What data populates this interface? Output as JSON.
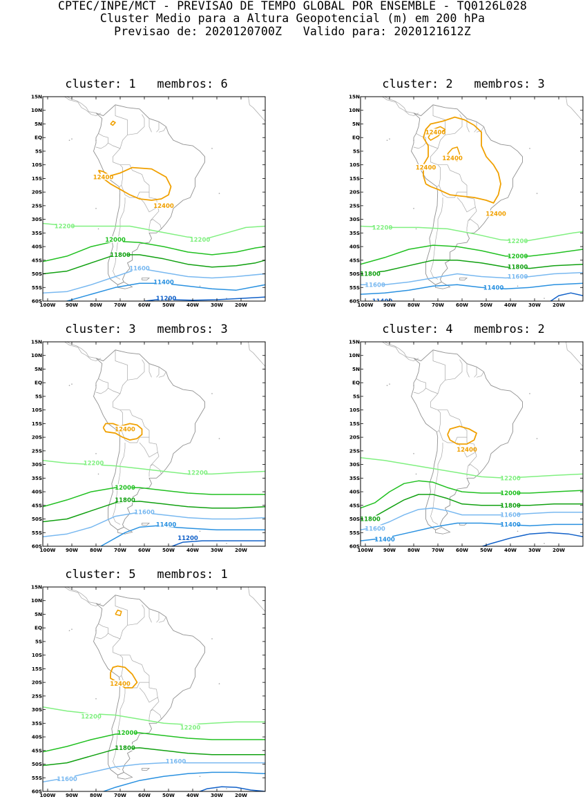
{
  "header": {
    "line1": "CPTEC/INPE/MCT - PREVISAO DE TEMPO GLOBAL POR ENSEMBLE - TQ0126L028",
    "line2": "Cluster Medio para a Altura Geopotencial (m) em 200 hPa",
    "line3": "Previsao de: 2020120700Z   Valido para: 2020121612Z"
  },
  "axes": {
    "lat_labels": [
      "15N",
      "10N",
      "5N",
      "EQ",
      "5S",
      "10S",
      "15S",
      "20S",
      "25S",
      "30S",
      "35S",
      "40S",
      "45S",
      "50S",
      "55S",
      "60S"
    ],
    "lon_labels": [
      "100W",
      "90W",
      "80W",
      "70W",
      "60W",
      "50W",
      "40W",
      "30W",
      "20W"
    ]
  },
  "panels": [
    {
      "title": "cluster: 1   membros: 6",
      "labels": [
        {
          "text": "12400",
          "lon": -77,
          "lat": -14.5,
          "color": "#f0a000"
        },
        {
          "text": "12400",
          "lon": -52,
          "lat": -25,
          "color": "#f0a000"
        },
        {
          "text": "12200",
          "lon": -93,
          "lat": -32.5,
          "color": "#80f080"
        },
        {
          "text": "12200",
          "lon": -37,
          "lat": -37.5,
          "color": "#80f080"
        },
        {
          "text": "12000",
          "lon": -72,
          "lat": -37.5,
          "color": "#20c020"
        },
        {
          "text": "11800",
          "lon": -70,
          "lat": -43,
          "color": "#10a010"
        },
        {
          "text": "11600",
          "lon": -62,
          "lat": -48,
          "color": "#78b8f0"
        },
        {
          "text": "11400",
          "lon": -52,
          "lat": -53,
          "color": "#2890e0"
        },
        {
          "text": "11200",
          "lon": -51,
          "lat": -59,
          "color": "#1060c8"
        }
      ]
    },
    {
      "title": "cluster: 2   membros: 3",
      "labels": [
        {
          "text": "12400",
          "lon": -71,
          "lat": 2,
          "color": "#f0a000"
        },
        {
          "text": "12400",
          "lon": -64,
          "lat": -7.5,
          "color": "#f0a000"
        },
        {
          "text": "12400",
          "lon": -75,
          "lat": -11,
          "color": "#f0a000"
        },
        {
          "text": "12400",
          "lon": -46,
          "lat": -28,
          "color": "#f0a000"
        },
        {
          "text": "12200",
          "lon": -93,
          "lat": -33,
          "color": "#80f080"
        },
        {
          "text": "12200",
          "lon": -37,
          "lat": -38,
          "color": "#80f080"
        },
        {
          "text": "12000",
          "lon": -37,
          "lat": -43.5,
          "color": "#20c020"
        },
        {
          "text": "11800",
          "lon": -98,
          "lat": -50,
          "color": "#10a010"
        },
        {
          "text": "11800",
          "lon": -37,
          "lat": -47.5,
          "color": "#10a010"
        },
        {
          "text": "11600",
          "lon": -96,
          "lat": -54,
          "color": "#78b8f0"
        },
        {
          "text": "11600",
          "lon": -37,
          "lat": -51,
          "color": "#78b8f0"
        },
        {
          "text": "11400",
          "lon": -47,
          "lat": -55,
          "color": "#2890e0"
        },
        {
          "text": "11400",
          "lon": -93,
          "lat": -60,
          "color": "#1060c8"
        }
      ]
    },
    {
      "title": "cluster: 3   membros: 3",
      "labels": [
        {
          "text": "12400",
          "lon": -68,
          "lat": -17,
          "color": "#f0a000"
        },
        {
          "text": "12200",
          "lon": -81,
          "lat": -29.5,
          "color": "#80f080"
        },
        {
          "text": "12200",
          "lon": -38,
          "lat": -33,
          "color": "#80f080"
        },
        {
          "text": "12000",
          "lon": -68,
          "lat": -38.5,
          "color": "#20c020"
        },
        {
          "text": "11800",
          "lon": -68,
          "lat": -43,
          "color": "#10a010"
        },
        {
          "text": "11600",
          "lon": -60,
          "lat": -47.5,
          "color": "#78b8f0"
        },
        {
          "text": "11400",
          "lon": -51,
          "lat": -52,
          "color": "#2890e0"
        },
        {
          "text": "11200",
          "lon": -42,
          "lat": -57,
          "color": "#1060c8"
        }
      ]
    },
    {
      "title": "cluster: 4   membros: 2",
      "labels": [
        {
          "text": "12400",
          "lon": -58,
          "lat": -24.5,
          "color": "#f0a000"
        },
        {
          "text": "12200",
          "lon": -40,
          "lat": -35,
          "color": "#80f080"
        },
        {
          "text": "12000",
          "lon": -40,
          "lat": -40.5,
          "color": "#20c020"
        },
        {
          "text": "11800",
          "lon": -40,
          "lat": -45,
          "color": "#10a010"
        },
        {
          "text": "11800",
          "lon": -98,
          "lat": -50,
          "color": "#10a010"
        },
        {
          "text": "11600",
          "lon": -96,
          "lat": -53.5,
          "color": "#78b8f0"
        },
        {
          "text": "11600",
          "lon": -40,
          "lat": -48.5,
          "color": "#78b8f0"
        },
        {
          "text": "11400",
          "lon": -92,
          "lat": -57.5,
          "color": "#2890e0"
        },
        {
          "text": "11400",
          "lon": -40,
          "lat": -52,
          "color": "#2890e0"
        }
      ]
    },
    {
      "title": "cluster: 5   membros: 1",
      "labels": [
        {
          "text": "12400",
          "lon": -70,
          "lat": -20.5,
          "color": "#f0a000"
        },
        {
          "text": "12200",
          "lon": -82,
          "lat": -32.5,
          "color": "#80f080"
        },
        {
          "text": "12200",
          "lon": -41,
          "lat": -36.5,
          "color": "#80f080"
        },
        {
          "text": "12000",
          "lon": -67,
          "lat": -38.5,
          "color": "#20c020"
        },
        {
          "text": "11800",
          "lon": -68,
          "lat": -44,
          "color": "#10a010"
        },
        {
          "text": "11600",
          "lon": -47,
          "lat": -49,
          "color": "#78b8f0"
        },
        {
          "text": "11600",
          "lon": -92,
          "lat": -55.5,
          "color": "#78b8f0"
        }
      ]
    }
  ]
}
